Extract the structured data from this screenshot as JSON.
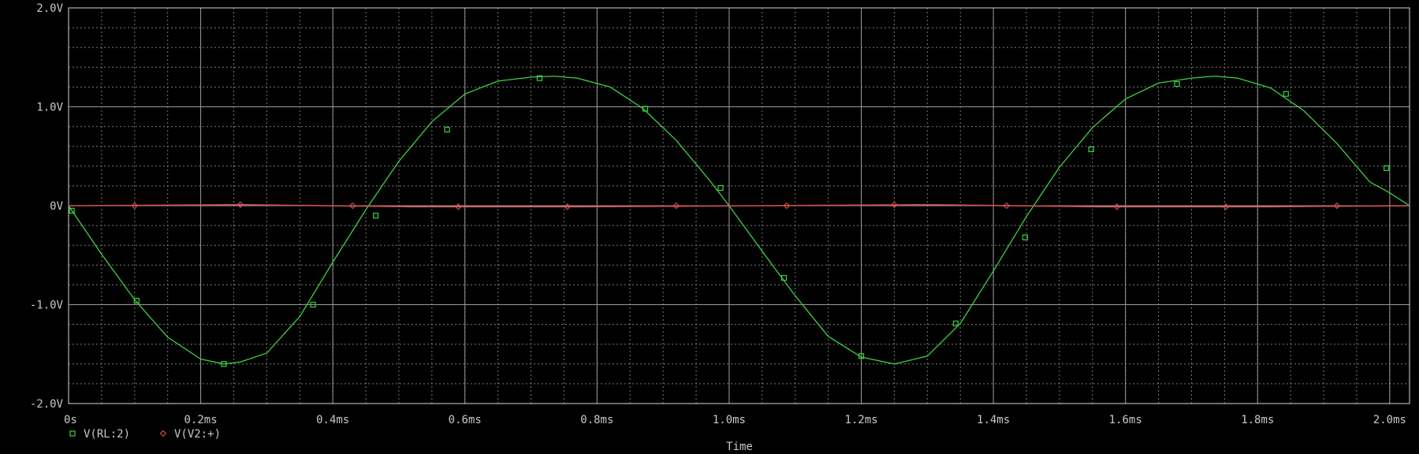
{
  "chart_data": {
    "type": "line",
    "title": "",
    "xlabel": "Time",
    "ylabel": "",
    "xlim": [
      0,
      2.03
    ],
    "ylim": [
      -2.0,
      2.0
    ],
    "x_unit": "ms",
    "grid": true,
    "legend_placement": "bottom-left",
    "x_ticks": [
      {
        "value": 0,
        "label": "0s"
      },
      {
        "value": 0.2,
        "label": "0.2ms"
      },
      {
        "value": 0.4,
        "label": "0.4ms"
      },
      {
        "value": 0.6,
        "label": "0.6ms"
      },
      {
        "value": 0.8,
        "label": "0.8ms"
      },
      {
        "value": 1.0,
        "label": "1.0ms"
      },
      {
        "value": 1.2,
        "label": "1.2ms"
      },
      {
        "value": 1.4,
        "label": "1.4ms"
      },
      {
        "value": 1.6,
        "label": "1.6ms"
      },
      {
        "value": 1.8,
        "label": "1.8ms"
      },
      {
        "value": 2.0,
        "label": "2.0ms"
      }
    ],
    "y_ticks": [
      {
        "value": 2.0,
        "label": "2.0V"
      },
      {
        "value": 1.0,
        "label": "1.0V"
      },
      {
        "value": 0.0,
        "label": "0V"
      },
      {
        "value": -1.0,
        "label": "-1.0V"
      },
      {
        "value": -2.0,
        "label": "-2.0V"
      }
    ],
    "series": [
      {
        "name": "V(RL:2)",
        "color": "#3ed13e",
        "marker": "square",
        "x": [
          0,
          0.05,
          0.1,
          0.15,
          0.2,
          0.235,
          0.26,
          0.3,
          0.35,
          0.4,
          0.45,
          0.5,
          0.55,
          0.6,
          0.65,
          0.7,
          0.735,
          0.77,
          0.82,
          0.87,
          0.92,
          0.97,
          1.0,
          1.05,
          1.1,
          1.15,
          1.2,
          1.25,
          1.3,
          1.35,
          1.4,
          1.45,
          1.5,
          1.55,
          1.6,
          1.65,
          1.7,
          1.735,
          1.77,
          1.82,
          1.87,
          1.92,
          1.97,
          2.0,
          2.03
        ],
        "values": [
          0.0,
          -0.49,
          -0.95,
          -1.33,
          -1.55,
          -1.6,
          -1.58,
          -1.49,
          -1.12,
          -0.57,
          -0.04,
          0.45,
          0.85,
          1.13,
          1.26,
          1.3,
          1.31,
          1.29,
          1.2,
          0.98,
          0.66,
          0.26,
          0.0,
          -0.46,
          -0.91,
          -1.32,
          -1.53,
          -1.6,
          -1.52,
          -1.19,
          -0.66,
          -0.11,
          0.39,
          0.79,
          1.08,
          1.24,
          1.29,
          1.31,
          1.29,
          1.19,
          0.96,
          0.63,
          0.24,
          0.13,
          0.0
        ],
        "markers_x": [
          0.005,
          0.103,
          0.235,
          0.37,
          0.465,
          0.573,
          0.713,
          0.873,
          0.987,
          1.083,
          1.2,
          1.343,
          1.448,
          1.548,
          1.678,
          1.843,
          1.995
        ],
        "markers_y": [
          -0.05,
          -0.96,
          -1.6,
          -1.0,
          -0.1,
          0.77,
          1.29,
          0.98,
          0.18,
          -0.73,
          -1.52,
          -1.19,
          -0.32,
          0.57,
          1.23,
          1.13,
          0.38
        ]
      },
      {
        "name": "V(V2:+)",
        "color": "#d45050",
        "marker": "diamond",
        "x": [
          0,
          0.26,
          0.52,
          0.78,
          1.04,
          1.3,
          1.56,
          1.82,
          2.03
        ],
        "values": [
          0.0,
          0.01,
          -0.01,
          -0.01,
          0.0,
          0.01,
          -0.01,
          -0.01,
          0.0
        ],
        "markers_x": [
          0.1,
          0.26,
          0.43,
          0.59,
          0.755,
          0.92,
          1.087,
          1.25,
          1.42,
          1.587,
          1.752,
          1.92
        ],
        "markers_y": [
          0.0,
          0.01,
          0.0,
          -0.01,
          -0.01,
          0.0,
          0.0,
          0.01,
          0.0,
          -0.01,
          -0.01,
          0.0
        ]
      }
    ]
  }
}
